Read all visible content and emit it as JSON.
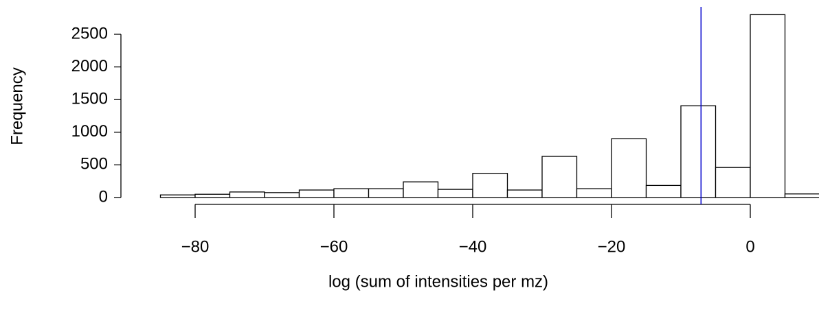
{
  "chart_data": {
    "type": "histogram",
    "x_label": "log (sum of intensities per mz)",
    "y_label": "Frequency",
    "bins": [
      -85,
      -80,
      -75,
      -70,
      -65,
      -60,
      -55,
      -50,
      -45,
      -40,
      -35,
      -30,
      -25,
      -20,
      -15,
      -10,
      -5,
      0,
      5,
      10
    ],
    "values": [
      40,
      50,
      85,
      75,
      115,
      135,
      135,
      240,
      125,
      370,
      115,
      630,
      135,
      900,
      185,
      1405,
      460,
      2800,
      55
    ],
    "color": "#ffffff",
    "edge_color": "#000000",
    "xlim": [
      -85,
      10
    ],
    "ylim": [
      0,
      2800
    ],
    "xticks": [
      {
        "value": -80,
        "label": "−80"
      },
      {
        "value": -60,
        "label": "−60"
      },
      {
        "value": -40,
        "label": "−40"
      },
      {
        "value": -20,
        "label": "−20"
      },
      0
    ],
    "yticks": [
      0,
      500,
      1000,
      1500,
      2000,
      2500
    ],
    "vline": -7.1,
    "vline_color": "#0000cc"
  }
}
